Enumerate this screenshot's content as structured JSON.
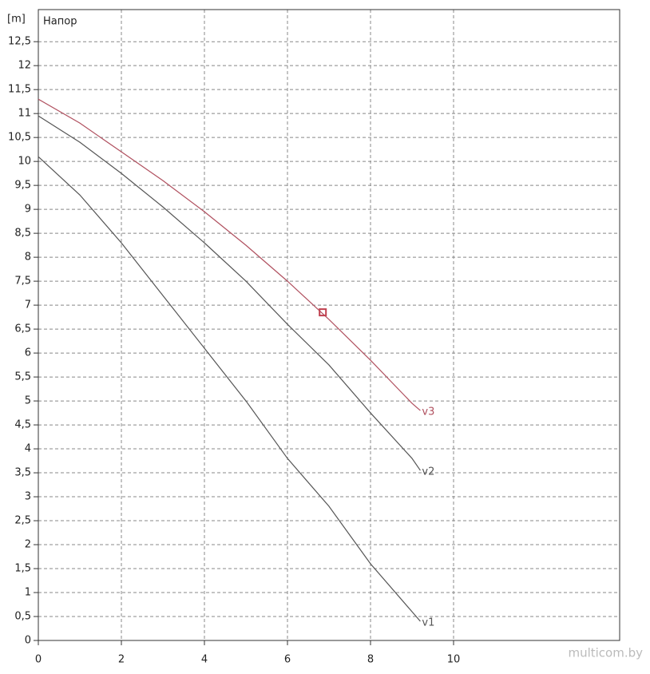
{
  "chart_data": {
    "type": "line",
    "y_unit": "[m]",
    "y_label": "Напор",
    "x": [
      0,
      1,
      2,
      3,
      4,
      5,
      6,
      7,
      8,
      9,
      9.2
    ],
    "series": [
      {
        "name": "v1",
        "color": "#555555",
        "values": [
          10.1,
          9.3,
          8.3,
          7.2,
          6.1,
          5.0,
          3.8,
          2.8,
          1.6,
          0.6,
          0.4
        ]
      },
      {
        "name": "v2",
        "color": "#555555",
        "values": [
          10.95,
          10.4,
          9.75,
          9.05,
          8.3,
          7.5,
          6.6,
          5.75,
          4.75,
          3.8,
          3.55
        ]
      },
      {
        "name": "v3",
        "color": "#b0505f",
        "values": [
          11.3,
          10.8,
          10.2,
          9.6,
          8.95,
          8.25,
          7.5,
          6.7,
          5.85,
          4.95,
          4.8
        ]
      }
    ],
    "operating_point": {
      "x": 6.85,
      "y": 6.85,
      "color": "#c0404f"
    },
    "xlim": [
      0,
      14
    ],
    "ylim": [
      0,
      13.17
    ],
    "xticks": [
      0,
      2,
      4,
      6,
      8,
      10
    ],
    "yticks": [
      0,
      {
        "value": 0.5,
        "label": "0,5"
      },
      1,
      {
        "value": 1.5,
        "label": "1,5"
      },
      2,
      {
        "value": 2.5,
        "label": "2,5"
      },
      3,
      {
        "value": 3.5,
        "label": "3,5"
      },
      4,
      {
        "value": 4.5,
        "label": "4,5"
      },
      5,
      {
        "value": 5.5,
        "label": "5,5"
      },
      6,
      {
        "value": 6.5,
        "label": "6,5"
      },
      7,
      {
        "value": 7.5,
        "label": "7,5"
      },
      8,
      {
        "value": 8.5,
        "label": "8,5"
      },
      9,
      {
        "value": 9.5,
        "label": "9,5"
      },
      10,
      {
        "value": 10.5,
        "label": "10,5"
      },
      11,
      {
        "value": 11.5,
        "label": "11,5"
      },
      12,
      {
        "value": 12.5,
        "label": "12,5"
      }
    ],
    "grid": true,
    "watermark": "multicom.by"
  }
}
